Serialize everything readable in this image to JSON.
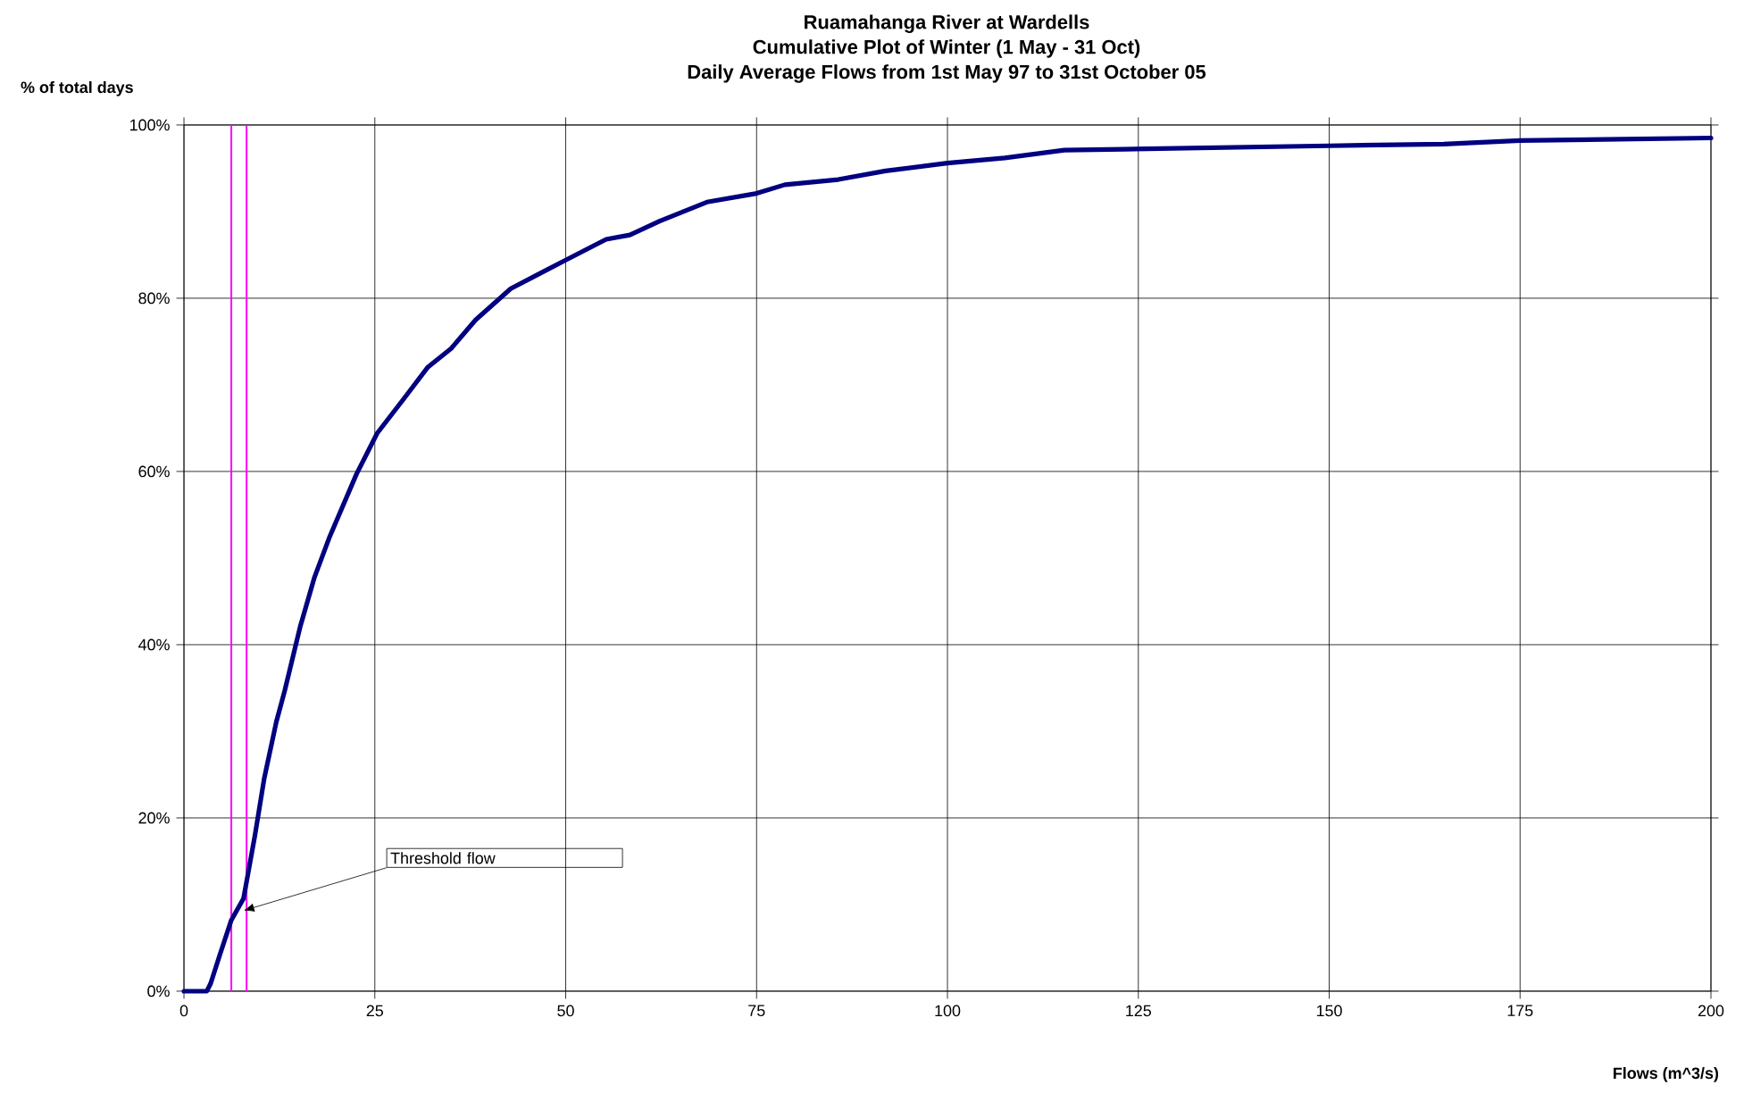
{
  "chart_data": {
    "type": "line",
    "title": "Ruamahanga River at Wardells\nCumulative Plot of Winter (1 May - 31 Oct)\nDaily Average Flows  from 1st May 97 to 31st October  05",
    "xlabel": "Flows (m^3/s)",
    "ylabel": "% of total days",
    "x": [
      0,
      3,
      3.5,
      4.7,
      6.2,
      7.8,
      9.3,
      10.5,
      12.1,
      13.2,
      15.2,
      17.1,
      19.1,
      22.6,
      25.3,
      28.8,
      31.9,
      35.0,
      38.2,
      42.8,
      46.7,
      50,
      55.3,
      58.4,
      62.3,
      68.5,
      75,
      78.7,
      85.7,
      91.9,
      100,
      107.5,
      115.3,
      123.1,
      150,
      165,
      175,
      200
    ],
    "series": [
      {
        "color": "#000080",
        "values": [
          0,
          0,
          0.9,
          4.2,
          8.2,
          10.7,
          18.0,
          24.5,
          31.1,
          34.7,
          42.0,
          47.8,
          52.5,
          59.7,
          64.4,
          68.4,
          72.0,
          74.2,
          77.5,
          81.1,
          82.9,
          84.4,
          86.8,
          87.3,
          88.9,
          91.1,
          92.1,
          93.1,
          93.7,
          94.7,
          95.6,
          96.2,
          97.1,
          97.2,
          97.6,
          97.8,
          98.2,
          98.5
        ]
      }
    ],
    "xlim": [
      0,
      200
    ],
    "xticks": [
      0,
      25,
      50,
      75,
      100,
      125,
      150,
      175,
      200
    ],
    "ylim": [
      0,
      100
    ],
    "yticks": [
      {
        "value": 0,
        "label": "0%"
      },
      {
        "value": 20,
        "label": "20%"
      },
      {
        "value": 40,
        "label": "40%"
      },
      {
        "value": 60,
        "label": "60%"
      },
      {
        "value": 80,
        "label": "80%"
      },
      {
        "value": 100,
        "label": "100%"
      }
    ],
    "ref_lines": [
      {
        "axis": "x",
        "value": 6.2,
        "color": "#ff00ff"
      },
      {
        "axis": "x",
        "value": 8.2,
        "color": "#ff00ff"
      }
    ],
    "annotations": [
      {
        "text": "Threshold flow",
        "x": 7.8,
        "y": 9.3
      }
    ],
    "grid": true,
    "marker": "none",
    "line_style": "solid"
  }
}
